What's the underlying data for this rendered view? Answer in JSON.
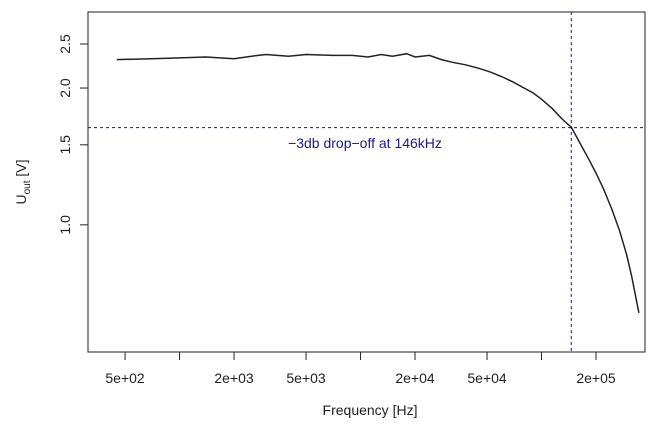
{
  "chart_data": {
    "type": "line",
    "log": "xy",
    "x_label": "Frequency [Hz]",
    "y_label": {
      "main": "U",
      "sub": "out",
      "unit": " [V]"
    },
    "x": [
      450,
      700,
      1000,
      1400,
      2000,
      2500,
      3000,
      4000,
      5000,
      7000,
      9000,
      11000,
      13000,
      15000,
      18000,
      20000,
      24000,
      28000,
      32000,
      38000,
      45000,
      52000,
      60000,
      70000,
      80000,
      90000,
      100000,
      115000,
      130000,
      146000,
      165000,
      185000,
      200000,
      220000,
      245000,
      270000,
      295000,
      315000,
      330000,
      345000
    ],
    "values": [
      2.31,
      2.32,
      2.33,
      2.34,
      2.32,
      2.35,
      2.37,
      2.35,
      2.37,
      2.36,
      2.36,
      2.34,
      2.37,
      2.35,
      2.38,
      2.34,
      2.36,
      2.31,
      2.28,
      2.25,
      2.21,
      2.17,
      2.12,
      2.06,
      2.0,
      1.95,
      1.89,
      1.8,
      1.71,
      1.64,
      1.5,
      1.38,
      1.3,
      1.2,
      1.08,
      0.97,
      0.86,
      0.77,
      0.7,
      0.64
    ],
    "color": "#222222",
    "xlim": [
      312,
      373000
    ],
    "ylim": [
      0.525,
      2.94
    ],
    "xticks": [
      {
        "value": 500,
        "label": "5e+02"
      },
      {
        "value": 2000,
        "label": "2e+03"
      },
      {
        "value": 5000,
        "label": "5e+03"
      },
      {
        "value": 20000,
        "label": "2e+04"
      },
      {
        "value": 50000,
        "label": "5e+04"
      },
      {
        "value": 200000,
        "label": "2e+05"
      }
    ],
    "xminorticks": [
      1000,
      10000,
      100000
    ],
    "yticks": [
      {
        "value": 1,
        "label": "1.0"
      },
      1.5,
      {
        "value": 2,
        "label": "2.0"
      },
      2.5
    ],
    "reference_lines": {
      "y": 1.636,
      "x": 146000,
      "color": "#1a1a8c"
    },
    "annotation": "−3db drop−off at 146kHz"
  }
}
